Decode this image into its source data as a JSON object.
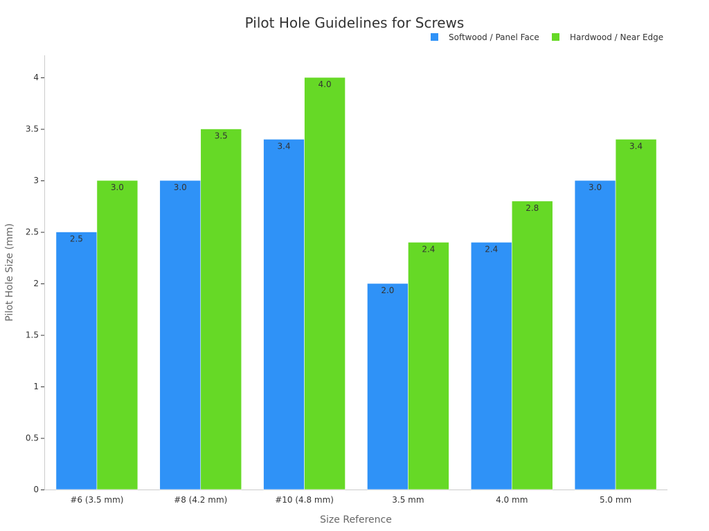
{
  "chart_data": {
    "type": "bar",
    "title": "Pilot Hole Guidelines for Screws",
    "xlabel": "Size Reference",
    "ylabel": "Pilot Hole Size (mm)",
    "categories": [
      "#6 (3.5 mm)",
      "#8 (4.2 mm)",
      "#10 (4.8 mm)",
      "3.5 mm",
      "4.0 mm",
      "5.0 mm"
    ],
    "series": [
      {
        "name": "Softwood / Panel Face",
        "color": "#2f92f7",
        "values": [
          2.5,
          3.0,
          3.4,
          2.0,
          2.4,
          3.0
        ]
      },
      {
        "name": "Hardwood / Near Edge",
        "color": "#66d926",
        "values": [
          3.0,
          3.5,
          4.0,
          2.4,
          2.8,
          3.4
        ]
      }
    ],
    "ylim": [
      0,
      4.2
    ],
    "yticks": [
      0,
      0.5,
      1,
      1.5,
      2,
      2.5,
      3,
      3.5,
      4
    ],
    "ytick_labels": [
      "0",
      "0.5",
      "1",
      "1.5",
      "2",
      "2.5",
      "3",
      "3.5",
      "4"
    ],
    "data_labels": [
      [
        "2.5",
        "3.0",
        "3.4",
        "2.0",
        "2.4",
        "3.0"
      ],
      [
        "3.0",
        "3.5",
        "4.0",
        "2.4",
        "2.8",
        "3.4"
      ]
    ],
    "legend_position": "top-right",
    "grid": false
  }
}
